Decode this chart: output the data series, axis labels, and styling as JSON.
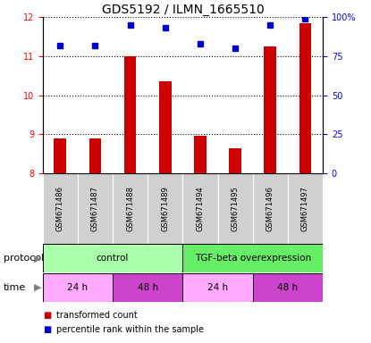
{
  "title": "GDS5192 / ILMN_1665510",
  "samples": [
    "GSM671486",
    "GSM671487",
    "GSM671488",
    "GSM671489",
    "GSM671494",
    "GSM671495",
    "GSM671496",
    "GSM671497"
  ],
  "bar_values": [
    8.9,
    8.9,
    11.0,
    10.35,
    8.95,
    8.65,
    11.25,
    11.85
  ],
  "dot_values": [
    82,
    82,
    95,
    93,
    83,
    80,
    95,
    99
  ],
  "bar_color": "#cc0000",
  "dot_color": "#0000cc",
  "ylim_left": [
    8,
    12
  ],
  "ylim_right": [
    0,
    100
  ],
  "yticks_left": [
    8,
    9,
    10,
    11,
    12
  ],
  "yticks_right": [
    0,
    25,
    50,
    75,
    100
  ],
  "yticklabels_right": [
    "0",
    "25",
    "50",
    "75",
    "100%"
  ],
  "protocol_groups": [
    {
      "label": "control",
      "start": 0,
      "end": 4,
      "color": "#aaffaa"
    },
    {
      "label": "TGF-beta overexpression",
      "start": 4,
      "end": 8,
      "color": "#66ee66"
    }
  ],
  "time_groups": [
    {
      "label": "24 h",
      "start": 0,
      "end": 2,
      "color": "#ffaaff"
    },
    {
      "label": "48 h",
      "start": 2,
      "end": 4,
      "color": "#cc44cc"
    },
    {
      "label": "24 h",
      "start": 4,
      "end": 6,
      "color": "#ffaaff"
    },
    {
      "label": "48 h",
      "start": 6,
      "end": 8,
      "color": "#cc44cc"
    }
  ],
  "bar_bottom": 8.0,
  "sample_area_color": "#d0d0d0",
  "title_fontsize": 10,
  "tick_fontsize": 7,
  "label_fontsize": 8,
  "sample_fontsize": 6,
  "row_fontsize": 7.5,
  "legend_fontsize": 7,
  "bar_width": 0.35
}
